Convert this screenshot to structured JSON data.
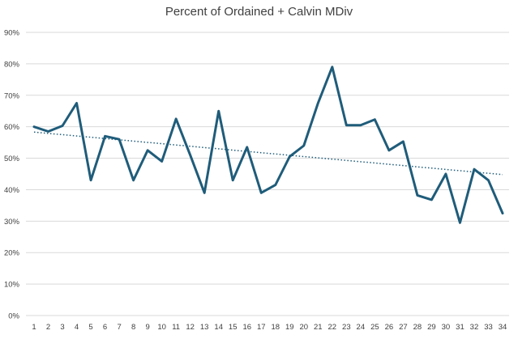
{
  "chart_data": {
    "type": "line",
    "title": "Percent of Ordained + Calvin MDiv",
    "xlabel": "",
    "ylabel": "",
    "x": [
      1,
      2,
      3,
      4,
      5,
      6,
      7,
      8,
      9,
      10,
      11,
      12,
      13,
      14,
      15,
      16,
      17,
      18,
      19,
      20,
      21,
      22,
      23,
      24,
      25,
      26,
      27,
      28,
      29,
      30,
      31,
      32,
      33,
      34
    ],
    "x_tick_labels": [
      "1",
      "2",
      "3",
      "4",
      "5",
      "6",
      "7",
      "8",
      "9",
      "10",
      "11",
      "12",
      "13",
      "14",
      "15",
      "16",
      "17",
      "18",
      "19",
      "20",
      "21",
      "22",
      "23",
      "24",
      "25",
      "26",
      "27",
      "28",
      "29",
      "30",
      "31",
      "32",
      "33",
      "34"
    ],
    "series": [
      {
        "values": [
          60,
          58.5,
          60.3,
          67.5,
          43,
          57,
          56,
          43,
          52.5,
          49,
          62.5,
          51,
          39,
          65,
          43,
          53.5,
          39,
          41.5,
          50.5,
          54,
          67.5,
          79,
          60.5,
          60.5,
          62.3,
          52.5,
          55.3,
          38.2,
          36.8,
          45,
          29.5,
          46.5,
          43,
          32.5
        ],
        "color": "#1f5c7a"
      }
    ],
    "trendline": {
      "kind": "linear",
      "start": [
        1,
        58.3
      ],
      "end": [
        34,
        44.8
      ],
      "style": "dotted",
      "color": "#1f5c7a"
    },
    "ylim": [
      0,
      90
    ],
    "y_ticks": [
      0,
      10,
      20,
      30,
      40,
      50,
      60,
      70,
      80,
      90
    ],
    "y_tick_labels": [
      "0%",
      "10%",
      "20%",
      "30%",
      "40%",
      "50%",
      "60%",
      "70%",
      "80%",
      "90%"
    ],
    "grid": true,
    "legend": "none"
  }
}
